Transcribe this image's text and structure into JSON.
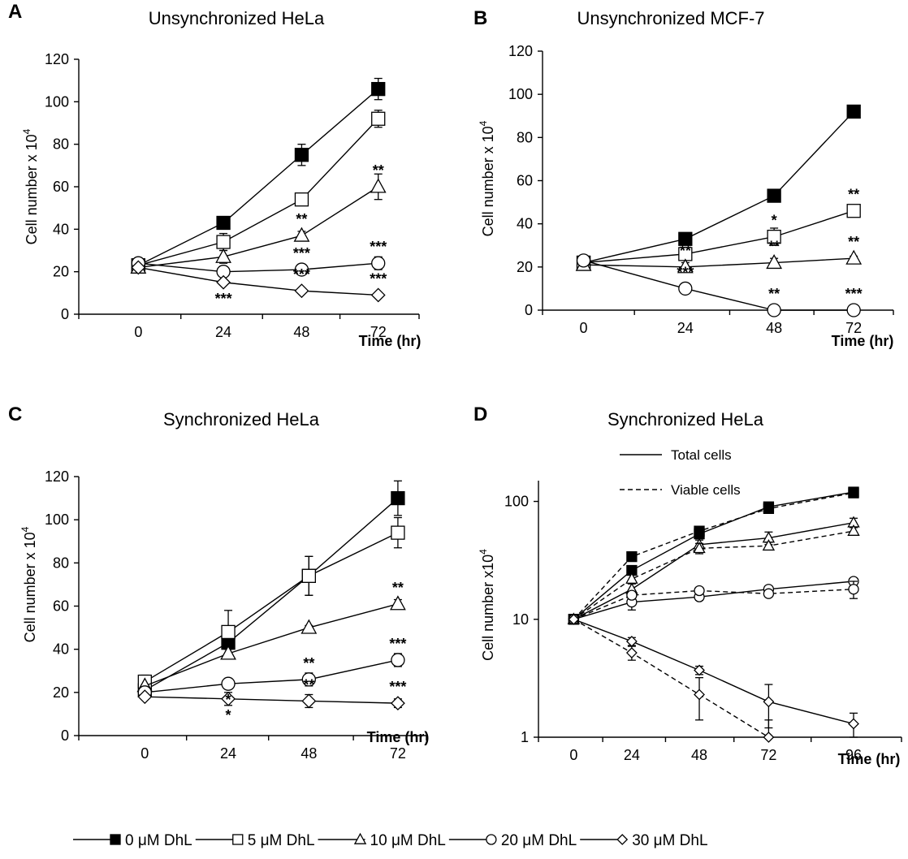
{
  "chart_data": [
    {
      "panel": "A",
      "type": "line",
      "title": "Unsynchronized HeLa",
      "ylabel": "Cell number x 10",
      "ylabel_sup": "4",
      "xlabel": "Time (hr)",
      "x": [
        0,
        24,
        48,
        72
      ],
      "xticks": [
        "0",
        "24",
        "48",
        "72"
      ],
      "ylim": [
        0,
        120
      ],
      "yticks": [
        "0",
        "20",
        "40",
        "60",
        "80",
        "100",
        "120"
      ],
      "log_scale": false,
      "series": [
        {
          "key": "s0",
          "values": [
            23,
            43,
            75,
            106
          ],
          "errors": [
            0,
            3,
            5,
            5
          ]
        },
        {
          "key": "s5",
          "values": [
            23,
            34,
            54,
            92
          ],
          "errors": [
            0,
            4,
            2,
            4
          ]
        },
        {
          "key": "s10",
          "values": [
            22,
            27,
            37,
            60
          ],
          "errors": [
            0,
            3,
            2,
            6
          ]
        },
        {
          "key": "s20",
          "values": [
            24,
            20,
            21,
            24
          ],
          "errors": [
            0,
            2,
            2,
            3
          ]
        },
        {
          "key": "s30",
          "values": [
            22,
            15,
            11,
            9
          ],
          "errors": [
            0,
            1,
            1,
            1
          ]
        }
      ],
      "annotations": [
        {
          "x": 48,
          "y": 37,
          "label": "**",
          "pos": "above"
        },
        {
          "x": 72,
          "y": 60,
          "label": "**",
          "pos": "above"
        },
        {
          "x": 48,
          "y": 21,
          "label": "***",
          "pos": "above"
        },
        {
          "x": 72,
          "y": 24,
          "label": "***",
          "pos": "above"
        },
        {
          "x": 24,
          "y": 15,
          "label": "***",
          "pos": "below"
        },
        {
          "x": 48,
          "y": 11,
          "label": "***",
          "pos": "above"
        },
        {
          "x": 72,
          "y": 9,
          "label": "***",
          "pos": "above"
        }
      ]
    },
    {
      "panel": "B",
      "type": "line",
      "title": "Unsynchronized MCF-7",
      "ylabel": "Cell number  x  10",
      "ylabel_sup": "4",
      "xlabel": "Time (hr)",
      "x": [
        0,
        24,
        48,
        72
      ],
      "xticks": [
        "0",
        "24",
        "48",
        "72"
      ],
      "ylim": [
        0,
        120
      ],
      "yticks": [
        "0",
        "20",
        "40",
        "60",
        "80",
        "100",
        "120"
      ],
      "log_scale": false,
      "series": [
        {
          "key": "s0",
          "values": [
            22,
            33,
            53,
            92
          ],
          "errors": [
            0,
            1,
            2,
            2
          ]
        },
        {
          "key": "s5",
          "values": [
            22,
            26,
            34,
            46
          ],
          "errors": [
            0,
            2,
            4,
            1
          ]
        },
        {
          "key": "s10",
          "values": [
            21,
            20,
            22,
            24
          ],
          "errors": [
            0,
            2,
            2,
            1
          ]
        },
        {
          "key": "s20",
          "values": [
            23,
            10,
            0,
            0
          ],
          "errors": [
            0,
            0,
            0,
            0
          ]
        }
      ],
      "annotations": [
        {
          "x": 24,
          "y": 26,
          "label": "**",
          "pos": "above"
        },
        {
          "x": 24,
          "y": 20,
          "label": "**",
          "pos": "above"
        },
        {
          "x": 24,
          "y": 10,
          "label": "***",
          "pos": "above"
        },
        {
          "x": 48,
          "y": 34,
          "label": "*",
          "pos": "above"
        },
        {
          "x": 48,
          "y": 22,
          "label": "**",
          "pos": "above"
        },
        {
          "x": 48,
          "y": 0,
          "label": "**",
          "pos": "above"
        },
        {
          "x": 72,
          "y": 46,
          "label": "**",
          "pos": "above"
        },
        {
          "x": 72,
          "y": 24,
          "label": "**",
          "pos": "above"
        },
        {
          "x": 72,
          "y": 0,
          "label": "***",
          "pos": "above"
        }
      ]
    },
    {
      "panel": "C",
      "type": "line",
      "title": "Synchronized HeLa",
      "ylabel": "Cell number  x  10",
      "ylabel_sup": "4",
      "xlabel": "Time (hr)",
      "x": [
        0,
        24,
        48,
        72
      ],
      "xticks": [
        "0",
        "24",
        "48",
        "72"
      ],
      "ylim": [
        0,
        120
      ],
      "yticks": [
        "0",
        "20",
        "40",
        "60",
        "80",
        "100",
        "120"
      ],
      "log_scale": false,
      "series": [
        {
          "key": "s0",
          "values": [
            21,
            43,
            74,
            110
          ],
          "errors": [
            0,
            3,
            9,
            8
          ]
        },
        {
          "key": "s5",
          "values": [
            25,
            48,
            74,
            94
          ],
          "errors": [
            3,
            10,
            9,
            7
          ]
        },
        {
          "key": "s10",
          "values": [
            23,
            38,
            50,
            61
          ],
          "errors": [
            0,
            2,
            1,
            2
          ]
        },
        {
          "key": "s20",
          "values": [
            20,
            24,
            26,
            35
          ],
          "errors": [
            0,
            2,
            3,
            3
          ]
        },
        {
          "key": "s30",
          "values": [
            18,
            17,
            16,
            15
          ],
          "errors": [
            1,
            3,
            3,
            2
          ]
        }
      ],
      "annotations": [
        {
          "x": 72,
          "y": 61,
          "label": "**",
          "pos": "above"
        },
        {
          "x": 72,
          "y": 35,
          "label": "***",
          "pos": "above"
        },
        {
          "x": 24,
          "y": 24,
          "label": "*",
          "pos": "below"
        },
        {
          "x": 48,
          "y": 26,
          "label": "**",
          "pos": "above"
        },
        {
          "x": 48,
          "y": 16,
          "label": "**",
          "pos": "above"
        },
        {
          "x": 24,
          "y": 17,
          "label": "*",
          "pos": "below"
        },
        {
          "x": 72,
          "y": 15,
          "label": "***",
          "pos": "above"
        }
      ]
    },
    {
      "panel": "D",
      "type": "line",
      "title": "Synchronized HeLa",
      "ylabel": "Cell number x10",
      "ylabel_sup": "4",
      "xlabel": "Time (hr)",
      "x": [
        0,
        24,
        48,
        72,
        96
      ],
      "xticks": [
        "0",
        "24",
        "48",
        "72",
        "96"
      ],
      "ylim": [
        1,
        150
      ],
      "yticks": [
        "1",
        "10",
        "100"
      ],
      "log_scale": true,
      "series": [
        {
          "key": "s0",
          "style": "solid",
          "values": [
            10,
            26,
            53,
            90,
            120
          ],
          "errors": [
            0,
            2,
            3,
            4,
            10
          ]
        },
        {
          "key": "s0",
          "style": "dashed",
          "values": [
            10,
            34,
            56,
            87,
            118
          ],
          "errors": [
            0,
            2,
            3,
            4,
            10
          ]
        },
        {
          "key": "s10",
          "style": "solid",
          "values": [
            10,
            18,
            43,
            49,
            66
          ],
          "errors": [
            0,
            2,
            4,
            6,
            6
          ]
        },
        {
          "key": "s10",
          "style": "dashed",
          "values": [
            10,
            22,
            40,
            42,
            56
          ],
          "errors": [
            0,
            2,
            4,
            3,
            4
          ]
        },
        {
          "key": "s20",
          "style": "solid",
          "values": [
            10,
            14,
            15.5,
            18,
            21
          ],
          "errors": [
            0,
            2,
            1,
            1,
            1
          ]
        },
        {
          "key": "s20",
          "style": "dashed",
          "values": [
            10,
            16,
            17.5,
            16.5,
            18
          ],
          "errors": [
            0,
            1,
            1,
            1,
            3
          ]
        },
        {
          "key": "s30",
          "style": "solid",
          "values": [
            10,
            6.5,
            3.7,
            2.0,
            1.3
          ],
          "errors": [
            0,
            0.5,
            0.3,
            0.8,
            0.3
          ]
        },
        {
          "key": "s30",
          "style": "dashed",
          "values": [
            10,
            5.2,
            2.3,
            1.0,
            null
          ],
          "errors": [
            0,
            0.7,
            0.9,
            0.4,
            0
          ]
        }
      ],
      "inset_legend": [
        {
          "label": "Total cells",
          "style": "solid"
        },
        {
          "label": "Viable cells",
          "style": "dashed"
        }
      ],
      "annotations": []
    }
  ],
  "legend": [
    {
      "key": "s0",
      "label": "0 μM DhL",
      "marker": "square",
      "fill": "#000000"
    },
    {
      "key": "s5",
      "label": "5 μM DhL",
      "marker": "square",
      "fill": "#ffffff"
    },
    {
      "key": "s10",
      "label": "10 μM DhL",
      "marker": "triangle",
      "fill": "#ffffff"
    },
    {
      "key": "s20",
      "label": "20 μM DhL",
      "marker": "circle",
      "fill": "#ffffff"
    },
    {
      "key": "s30",
      "label": "30 μM DhL",
      "marker": "diamond",
      "fill": "#ffffff"
    }
  ]
}
